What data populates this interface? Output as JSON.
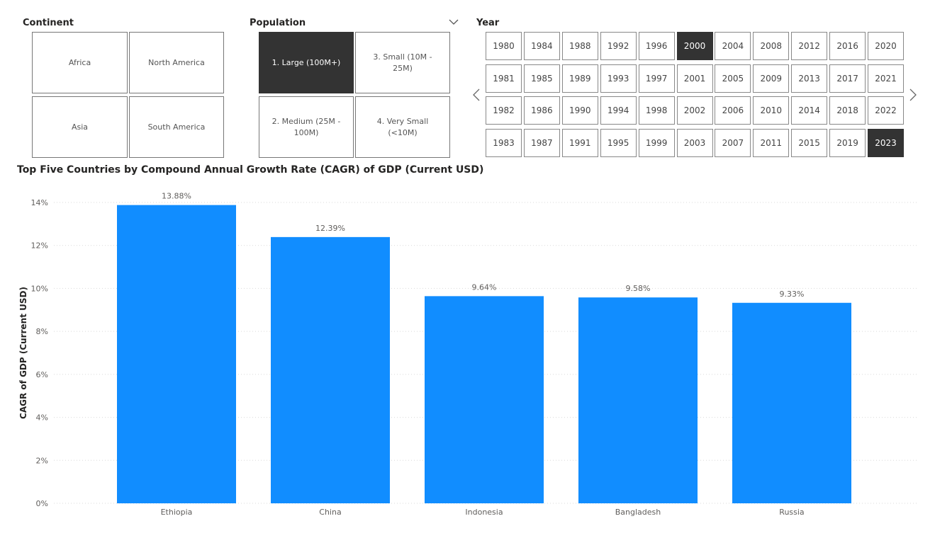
{
  "continent_slicer": {
    "title": "Continent",
    "options": [
      "Africa",
      "North America",
      "Asia",
      "South America"
    ]
  },
  "population_slicer": {
    "title": "Population",
    "options": [
      "1. Large (100M+)",
      "3. Small (10M - 25M)",
      "2. Medium (25M - 100M)",
      "4. Very Small (<10M)"
    ],
    "selected": "1. Large (100M+)"
  },
  "year_slicer": {
    "title": "Year",
    "columns": [
      [
        "1980",
        "1981",
        "1982",
        "1983"
      ],
      [
        "1984",
        "1985",
        "1986",
        "1987"
      ],
      [
        "1988",
        "1989",
        "1990",
        "1991"
      ],
      [
        "1992",
        "1993",
        "1994",
        "1995"
      ],
      [
        "1996",
        "1997",
        "1998",
        "1999"
      ],
      [
        "2000",
        "2001",
        "2002",
        "2003"
      ],
      [
        "2004",
        "2005",
        "2006",
        "2007"
      ],
      [
        "2008",
        "2009",
        "2010",
        "2011"
      ],
      [
        "2012",
        "2013",
        "2014",
        "2015"
      ],
      [
        "2016",
        "2017",
        "2018",
        "2019"
      ],
      [
        "2020",
        "2021",
        "2022",
        "2023"
      ]
    ],
    "selected": [
      "2000",
      "2023"
    ]
  },
  "chart_data": {
    "type": "bar",
    "title": "Top Five Countries by Compound Annual Growth Rate (CAGR) of GDP (Current USD)",
    "categories": [
      "Ethiopia",
      "China",
      "Indonesia",
      "Bangladesh",
      "Russia"
    ],
    "values": [
      13.88,
      12.39,
      9.64,
      9.58,
      9.33
    ],
    "data_labels": [
      "13.88%",
      "12.39%",
      "9.64%",
      "9.58%",
      "9.33%"
    ],
    "ylabel": "CAGR of GDP (Current USD)",
    "xlabel": "",
    "ylim": [
      0,
      14
    ],
    "yticks": [
      0,
      2,
      4,
      6,
      8,
      10,
      12,
      14
    ],
    "ytick_labels": [
      "0%",
      "2%",
      "4%",
      "6%",
      "8%",
      "10%",
      "12%",
      "14%"
    ],
    "grid": true,
    "bar_color": "#118DFF"
  }
}
